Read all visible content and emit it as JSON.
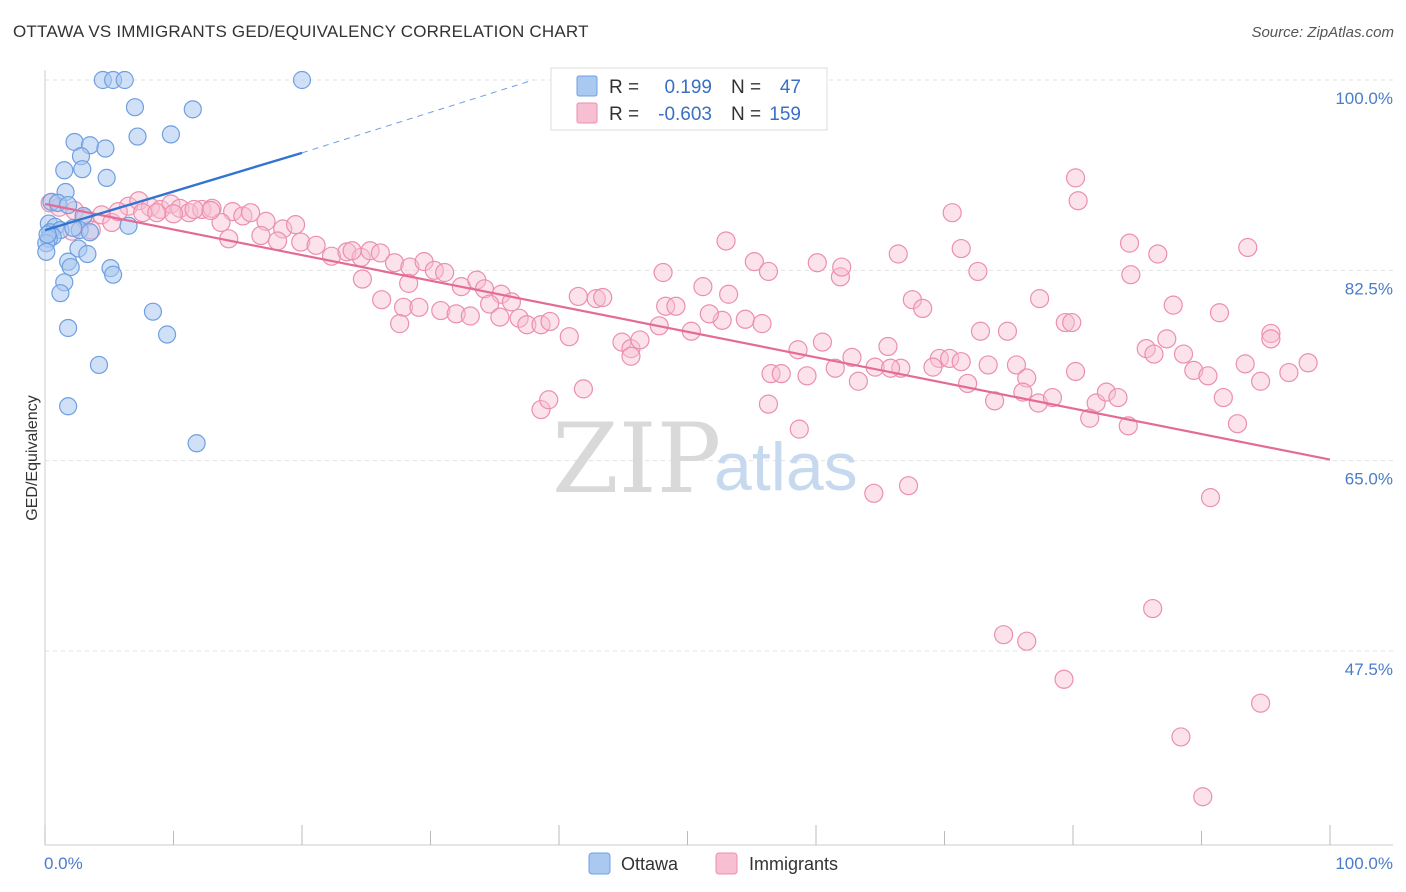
{
  "title": "OTTAWA VS IMMIGRANTS GED/EQUIVALENCY CORRELATION CHART",
  "source": "Source: ZipAtlas.com",
  "watermark": {
    "zip": "ZIP",
    "atlas": "atlas"
  },
  "colors": {
    "ottawa_fill": "#aac9f0",
    "ottawa_stroke": "#6f9fe0",
    "ottawa_line": "#3374d1",
    "immigrants_fill": "#f7bfd2",
    "immigrants_stroke": "#ec8fae",
    "immigrants_line": "#e46b97",
    "grid": "#e3e3e3",
    "axis_text": "#4a7cc9"
  },
  "legend": {
    "ottawa": {
      "r_label": "R =",
      "r_value": "0.199",
      "n_label": "N =",
      "n_value": "47"
    },
    "immigrants": {
      "r_label": "R =",
      "r_value": "-0.603",
      "n_label": "N =",
      "n_value": "159"
    }
  },
  "chart_data": {
    "type": "scatter",
    "title": "OTTAWA VS IMMIGRANTS GED/EQUIVALENCY CORRELATION CHART",
    "xlabel": "",
    "ylabel": "GED/Equivalency",
    "xlim": [
      0,
      100
    ],
    "ylim": [
      30,
      101.5
    ],
    "y_ticks": [
      47.5,
      65.0,
      82.5,
      100.0
    ],
    "y_tick_labels": [
      "47.5%",
      "65.0%",
      "82.5%",
      "100.0%"
    ],
    "x_tick_labels": [
      "0.0%",
      "100.0%"
    ],
    "legend_entries": [
      "Ottawa",
      "Immigrants"
    ],
    "series": [
      {
        "name": "Ottawa",
        "R": 0.199,
        "N": 47,
        "trend": {
          "x": [
            0,
            20
          ],
          "y": [
            86.2,
            93.3
          ],
          "dashed_extension_to": [
            38,
            100
          ]
        },
        "points": [
          [
            4.5,
            100
          ],
          [
            5.3,
            100
          ],
          [
            6.2,
            100
          ],
          [
            20,
            100
          ],
          [
            7,
            97.5
          ],
          [
            11.5,
            97.3
          ],
          [
            7.2,
            94.8
          ],
          [
            9.8,
            95
          ],
          [
            2.3,
            94.3
          ],
          [
            3.5,
            94
          ],
          [
            4.7,
            93.7
          ],
          [
            2.8,
            93
          ],
          [
            1.5,
            91.7
          ],
          [
            2.9,
            91.8
          ],
          [
            4.8,
            91
          ],
          [
            1.6,
            89.7
          ],
          [
            0.5,
            88.8
          ],
          [
            1,
            88.7
          ],
          [
            1.8,
            88.5
          ],
          [
            3,
            87.5
          ],
          [
            0.3,
            86.8
          ],
          [
            0.8,
            86.5
          ],
          [
            6.5,
            86.6
          ],
          [
            0.4,
            86
          ],
          [
            1.2,
            86.2
          ],
          [
            2.7,
            86.2
          ],
          [
            3.5,
            86
          ],
          [
            0.6,
            85.6
          ],
          [
            0.3,
            85.4
          ],
          [
            0.1,
            85
          ],
          [
            2.6,
            84.5
          ],
          [
            3.3,
            84
          ],
          [
            1.8,
            83.3
          ],
          [
            2,
            82.8
          ],
          [
            5.1,
            82.7
          ],
          [
            5.3,
            82.1
          ],
          [
            1.5,
            81.4
          ],
          [
            1.2,
            80.4
          ],
          [
            8.4,
            78.7
          ],
          [
            1.8,
            77.2
          ],
          [
            9.5,
            76.6
          ],
          [
            4.2,
            73.8
          ],
          [
            1.8,
            70
          ],
          [
            11.8,
            66.6
          ],
          [
            0.1,
            84.2
          ],
          [
            0.2,
            85.8
          ],
          [
            2.2,
            86.4
          ]
        ]
      },
      {
        "name": "Immigrants",
        "R": -0.603,
        "N": 159,
        "trend": {
          "x": [
            0,
            100
          ],
          "y": [
            88.6,
            65.1
          ]
        },
        "points": [
          [
            0.4,
            88.7
          ],
          [
            1.1,
            88.3
          ],
          [
            2.3,
            88
          ],
          [
            3.1,
            87.3
          ],
          [
            4.4,
            87.6
          ],
          [
            5.2,
            86.9
          ],
          [
            6.5,
            88.4
          ],
          [
            7.3,
            88.9
          ],
          [
            8.2,
            88.3
          ],
          [
            9,
            88.1
          ],
          [
            9.8,
            88.6
          ],
          [
            10.5,
            88.2
          ],
          [
            11.2,
            87.8
          ],
          [
            12.2,
            88.1
          ],
          [
            13,
            88.2
          ],
          [
            14.6,
            87.9
          ],
          [
            15.4,
            87.5
          ],
          [
            16,
            87.8
          ],
          [
            17.2,
            87
          ],
          [
            18.5,
            86.3
          ],
          [
            19.5,
            86.7
          ],
          [
            2.1,
            86.1
          ],
          [
            3.6,
            86.2
          ],
          [
            5.7,
            87.9
          ],
          [
            7.6,
            87.8
          ],
          [
            10,
            87.7
          ],
          [
            13.7,
            86.9
          ],
          [
            8.7,
            87.8
          ],
          [
            12.9,
            88
          ],
          [
            11.6,
            88.1
          ],
          [
            14.3,
            85.4
          ],
          [
            16.8,
            85.7
          ],
          [
            18.1,
            85.2
          ],
          [
            19.9,
            85.1
          ],
          [
            21.1,
            84.8
          ],
          [
            22.3,
            83.8
          ],
          [
            23.5,
            84.2
          ],
          [
            24.6,
            83.7
          ],
          [
            25.3,
            84.3
          ],
          [
            26.1,
            84.1
          ],
          [
            27.2,
            83.2
          ],
          [
            28.4,
            82.8
          ],
          [
            29.5,
            83.3
          ],
          [
            30.3,
            82.5
          ],
          [
            31.1,
            82.3
          ],
          [
            32.4,
            81
          ],
          [
            33.6,
            81.6
          ],
          [
            34.2,
            80.8
          ],
          [
            35.5,
            80.3
          ],
          [
            36.3,
            79.6
          ],
          [
            24.7,
            81.7
          ],
          [
            26.2,
            79.8
          ],
          [
            27.9,
            79.1
          ],
          [
            29.1,
            79.1
          ],
          [
            30.8,
            78.8
          ],
          [
            32,
            78.5
          ],
          [
            33.1,
            78.3
          ],
          [
            34.6,
            79.4
          ],
          [
            35.4,
            78.2
          ],
          [
            36.9,
            78.1
          ],
          [
            37.5,
            77.5
          ],
          [
            38.6,
            77.5
          ],
          [
            39.3,
            77.8
          ],
          [
            40.8,
            76.4
          ],
          [
            41.5,
            80.1
          ],
          [
            42.9,
            79.9
          ],
          [
            43.4,
            80
          ],
          [
            44.9,
            75.9
          ],
          [
            45.6,
            75.3
          ],
          [
            46.3,
            76.1
          ],
          [
            47.8,
            77.4
          ],
          [
            48.3,
            79.2
          ],
          [
            49.1,
            79.2
          ],
          [
            50.3,
            76.9
          ],
          [
            51.2,
            81
          ],
          [
            52.7,
            77.9
          ],
          [
            53.2,
            80.3
          ],
          [
            54.5,
            78
          ],
          [
            55.8,
            77.6
          ],
          [
            56.5,
            73
          ],
          [
            57.3,
            73
          ],
          [
            58.6,
            75.2
          ],
          [
            59.3,
            72.8
          ],
          [
            60.5,
            75.9
          ],
          [
            61.5,
            73.5
          ],
          [
            62.8,
            74.5
          ],
          [
            63.3,
            72.3
          ],
          [
            64.6,
            73.6
          ],
          [
            65.6,
            75.5
          ],
          [
            66.6,
            73.5
          ],
          [
            67.5,
            79.8
          ],
          [
            68.3,
            79
          ],
          [
            69.6,
            74.4
          ],
          [
            70.4,
            74.4
          ],
          [
            71.3,
            74.1
          ],
          [
            72.8,
            76.9
          ],
          [
            73.4,
            73.8
          ],
          [
            74.9,
            76.9
          ],
          [
            75.6,
            73.8
          ],
          [
            76.4,
            72.6
          ],
          [
            77.3,
            70.3
          ],
          [
            78.4,
            70.8
          ],
          [
            79.4,
            77.7
          ],
          [
            80.2,
            73.2
          ],
          [
            81.8,
            70.3
          ],
          [
            82.6,
            71.3
          ],
          [
            83.5,
            70.8
          ],
          [
            84.3,
            68.2
          ],
          [
            85.7,
            75.3
          ],
          [
            86.3,
            74.8
          ],
          [
            87.3,
            76.2
          ],
          [
            88.6,
            74.8
          ],
          [
            89.4,
            73.3
          ],
          [
            90.5,
            72.8
          ],
          [
            91.7,
            70.8
          ],
          [
            92.8,
            68.4
          ],
          [
            93.4,
            73.9
          ],
          [
            94.6,
            72.3
          ],
          [
            95.4,
            76.7
          ],
          [
            96.8,
            73.1
          ],
          [
            28.3,
            81.3
          ],
          [
            23.9,
            84.3
          ],
          [
            48.1,
            82.3
          ],
          [
            53,
            85.2
          ],
          [
            55.2,
            83.3
          ],
          [
            56.3,
            82.4
          ],
          [
            60.1,
            83.2
          ],
          [
            61.9,
            81.9
          ],
          [
            62,
            82.8
          ],
          [
            58.7,
            67.9
          ],
          [
            65.8,
            73.5
          ],
          [
            64.5,
            62
          ],
          [
            66.4,
            84
          ],
          [
            71.8,
            72.1
          ],
          [
            72.6,
            82.4
          ],
          [
            73.9,
            70.5
          ],
          [
            76.1,
            71.3
          ],
          [
            77.4,
            79.9
          ],
          [
            79.9,
            77.7
          ],
          [
            81.3,
            68.9
          ],
          [
            84.5,
            82.1
          ],
          [
            86.6,
            84
          ],
          [
            87.8,
            79.3
          ],
          [
            90.7,
            61.6
          ],
          [
            91.4,
            78.6
          ],
          [
            93.6,
            84.6
          ],
          [
            95.4,
            76.2
          ],
          [
            98.3,
            74
          ],
          [
            94.6,
            42.7
          ],
          [
            90.1,
            34.1
          ],
          [
            88.4,
            39.6
          ],
          [
            84.4,
            85
          ],
          [
            86.2,
            51.4
          ],
          [
            74.6,
            49
          ],
          [
            79.3,
            44.9
          ],
          [
            76.4,
            48.4
          ],
          [
            67.2,
            62.7
          ],
          [
            56.3,
            70.2
          ],
          [
            45.6,
            74.6
          ],
          [
            38.6,
            69.7
          ],
          [
            39.2,
            70.6
          ],
          [
            27.6,
            77.6
          ],
          [
            51.7,
            78.5
          ],
          [
            41.9,
            71.6
          ],
          [
            69.1,
            73.6
          ],
          [
            80.4,
            88.9
          ],
          [
            70.6,
            87.8
          ],
          [
            80.2,
            91
          ],
          [
            71.3,
            84.5
          ]
        ]
      }
    ]
  },
  "bottom_legend": {
    "ottawa": "Ottawa",
    "immigrants": "Immigrants"
  }
}
